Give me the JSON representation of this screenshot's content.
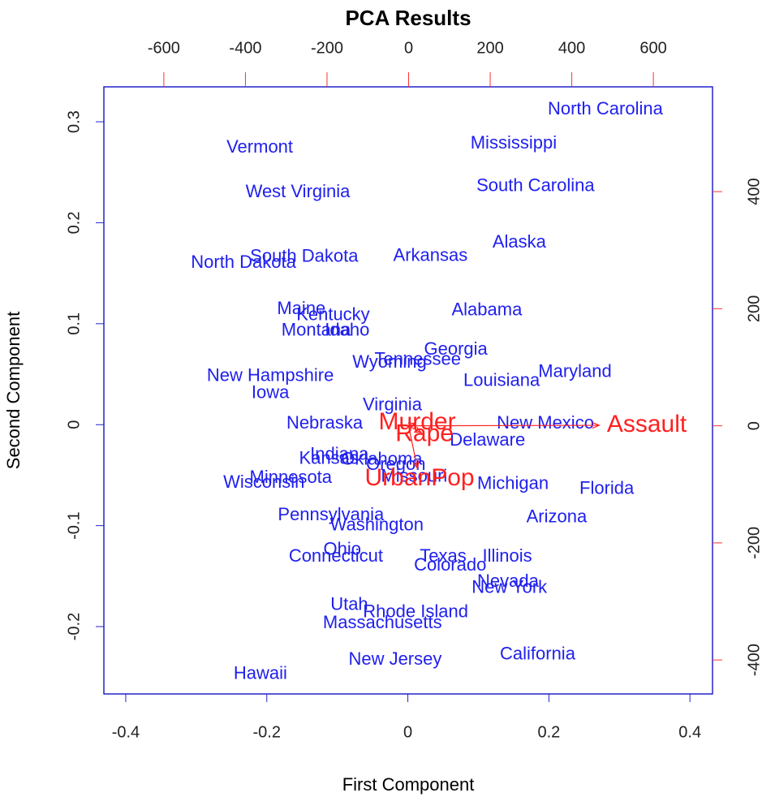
{
  "chart_data": {
    "type": "biplot",
    "title": "PCA Results",
    "xlabel": "First Component",
    "ylabel": "Second Component",
    "xlim": [
      -0.431,
      0.432
    ],
    "ylim": [
      -0.2667,
      0.3346
    ],
    "xticks": [
      -0.4,
      -0.2,
      0.0,
      0.2,
      0.4
    ],
    "yticks": [
      -0.2,
      -0.1,
      0.0,
      0.1,
      0.2,
      0.3
    ],
    "x2lim": [
      -747,
      745
    ],
    "y2lim": [
      -458,
      579
    ],
    "x2ticks": [
      -600,
      -400,
      -200,
      0,
      200,
      400,
      600
    ],
    "y2ticks": [
      -400,
      -200,
      0,
      200,
      400
    ],
    "points": {
      "color": "#2020ee",
      "labels": [
        "North Carolina",
        "Vermont",
        "Mississippi",
        "West Virginia",
        "South Carolina",
        "Alaska",
        "South Dakota",
        "North Dakota",
        "Arkansas",
        "Maine",
        "Kentucky",
        "Alabama",
        "Montana",
        "Idaho",
        "Georgia",
        "Tennessee",
        "Wyoming",
        "Maryland",
        "New Hampshire",
        "Louisiana",
        "Iowa",
        "Virginia",
        "Nebraska",
        "New Mexico",
        "Delaware",
        "Indiana",
        "Kansas",
        "Oklahoma",
        "Oregon",
        "Missouri",
        "Minnesota",
        "Wisconsin",
        "Michigan",
        "Florida",
        "Pennsylvania",
        "Washington",
        "Arizona",
        "Ohio",
        "Connecticut",
        "Texas",
        "Illinois",
        "Colorado",
        "Nevada",
        "New York",
        "Utah",
        "Rhode Island",
        "Massachusetts",
        "New Jersey",
        "California",
        "Hawaii"
      ],
      "x": [
        0.28,
        -0.21,
        0.15,
        -0.156,
        0.181,
        0.158,
        -0.147,
        -0.233,
        0.032,
        -0.151,
        -0.106,
        0.112,
        -0.13,
        -0.086,
        0.068,
        0.014,
        -0.026,
        0.237,
        -0.195,
        0.133,
        -0.195,
        -0.022,
        -0.118,
        0.195,
        0.113,
        -0.097,
        -0.112,
        -0.037,
        -0.017,
        0.009,
        -0.166,
        -0.204,
        0.149,
        0.282,
        -0.109,
        -0.044,
        0.211,
        -0.093,
        -0.102,
        0.05,
        0.141,
        0.06,
        0.142,
        0.144,
        -0.083,
        0.011,
        -0.036,
        -0.018,
        0.184,
        -0.209
      ],
      "y": [
        0.312,
        0.274,
        0.278,
        0.23,
        0.236,
        0.18,
        0.166,
        0.16,
        0.167,
        0.114,
        0.108,
        0.113,
        0.093,
        0.093,
        0.074,
        0.064,
        0.061,
        0.052,
        0.048,
        0.043,
        0.031,
        0.019,
        0.001,
        0.001,
        -0.016,
        -0.03,
        -0.034,
        -0.035,
        -0.04,
        -0.052,
        -0.053,
        -0.058,
        -0.059,
        -0.064,
        -0.09,
        -0.1,
        -0.092,
        -0.124,
        -0.131,
        -0.131,
        -0.131,
        -0.14,
        -0.156,
        -0.162,
        -0.179,
        -0.186,
        -0.197,
        -0.233,
        -0.228,
        -0.247
      ]
    },
    "loadings": {
      "color": "#ff2020",
      "labels": [
        "Murder",
        "Assault",
        "UrbanPop",
        "Rape"
      ],
      "x": [
        21,
        584,
        27,
        39
      ],
      "y": [
        5,
        1,
        -91,
        -15
      ]
    }
  }
}
